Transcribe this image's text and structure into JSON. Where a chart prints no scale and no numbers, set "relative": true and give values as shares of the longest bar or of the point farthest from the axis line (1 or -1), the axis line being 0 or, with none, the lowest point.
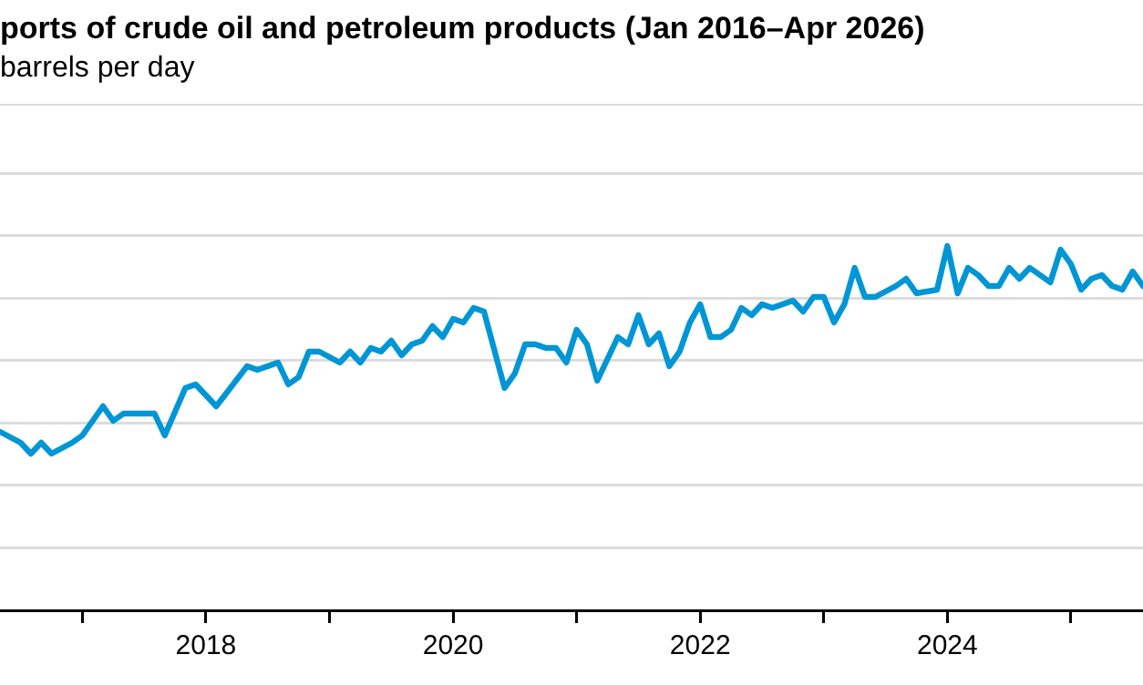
{
  "chart_data": {
    "type": "line",
    "title": "ports of crude oil and petroleum products (Jan 2016–Apr 2026)",
    "subtitle": "barrels per day",
    "relative": true,
    "grid": "y",
    "marker": "none",
    "line_style": "solid",
    "xlim": [
      "2016-05",
      "2025-08"
    ],
    "xticks": [
      {
        "value": "2017",
        "label": null
      },
      "2018",
      {
        "value": "2019",
        "label": null
      },
      "2020",
      {
        "value": "2021",
        "label": null
      },
      "2022",
      {
        "value": "2023",
        "label": null
      },
      "2024",
      {
        "value": "2025",
        "label": null
      }
    ],
    "x": [
      "2016-05",
      "2016-07",
      "2016-08",
      "2016-09",
      "2016-10",
      "2016-12",
      "2017-01",
      "2017-03",
      "2017-04",
      "2017-05",
      "2017-08",
      "2017-09",
      "2017-11",
      "2017-12",
      "2018-02",
      "2018-05",
      "2018-06",
      "2018-08",
      "2018-09",
      "2018-10",
      "2018-11",
      "2018-12",
      "2019-02",
      "2019-03",
      "2019-04",
      "2019-05",
      "2019-06",
      "2019-07",
      "2019-08",
      "2019-09",
      "2019-10",
      "2019-11",
      "2019-12",
      "2020-01",
      "2020-02",
      "2020-03",
      "2020-04",
      "2020-06",
      "2020-07",
      "2020-08",
      "2020-09",
      "2020-10",
      "2020-11",
      "2020-12",
      "2021-01",
      "2021-02",
      "2021-03",
      "2021-05",
      "2021-06",
      "2021-07",
      "2021-08",
      "2021-09",
      "2021-10",
      "2021-11",
      "2021-12",
      "2022-01",
      "2022-02",
      "2022-03",
      "2022-04",
      "2022-05",
      "2022-06",
      "2022-07",
      "2022-08",
      "2022-10",
      "2022-11",
      "2022-12",
      "2023-01",
      "2023-02",
      "2023-03",
      "2023-04",
      "2023-05",
      "2023-06",
      "2023-08",
      "2023-09",
      "2023-10",
      "2023-12",
      "2024-01",
      "2024-02",
      "2024-03",
      "2024-04",
      "2024-05",
      "2024-06",
      "2024-07",
      "2024-08",
      "2024-09",
      "2024-10",
      "2024-11",
      "2024-12",
      "2025-01",
      "2025-02",
      "2025-03",
      "2025-04",
      "2025-05",
      "2025-06",
      "2025-07",
      "2025-08"
    ],
    "series": [
      {
        "color": "#0096d6",
        "values": [
          0.49,
          0.46,
          0.43,
          0.46,
          0.43,
          0.46,
          0.48,
          0.56,
          0.52,
          0.54,
          0.54,
          0.48,
          0.61,
          0.62,
          0.56,
          0.67,
          0.66,
          0.68,
          0.62,
          0.64,
          0.71,
          0.71,
          0.68,
          0.71,
          0.68,
          0.72,
          0.71,
          0.74,
          0.7,
          0.73,
          0.74,
          0.78,
          0.75,
          0.8,
          0.79,
          0.83,
          0.82,
          0.61,
          0.65,
          0.73,
          0.73,
          0.72,
          0.72,
          0.68,
          0.77,
          0.73,
          0.63,
          0.75,
          0.73,
          0.81,
          0.73,
          0.76,
          0.67,
          0.71,
          0.79,
          0.84,
          0.75,
          0.75,
          0.77,
          0.83,
          0.81,
          0.84,
          0.83,
          0.85,
          0.82,
          0.86,
          0.86,
          0.79,
          0.84,
          0.94,
          0.86,
          0.86,
          0.89,
          0.91,
          0.87,
          0.88,
          1,
          0.87,
          0.94,
          0.92,
          0.89,
          0.89,
          0.94,
          0.91,
          0.94,
          0.92,
          0.9,
          0.99,
          0.95,
          0.88,
          0.91,
          0.92,
          0.89,
          0.88,
          0.93,
          0.89
        ]
      }
    ]
  }
}
